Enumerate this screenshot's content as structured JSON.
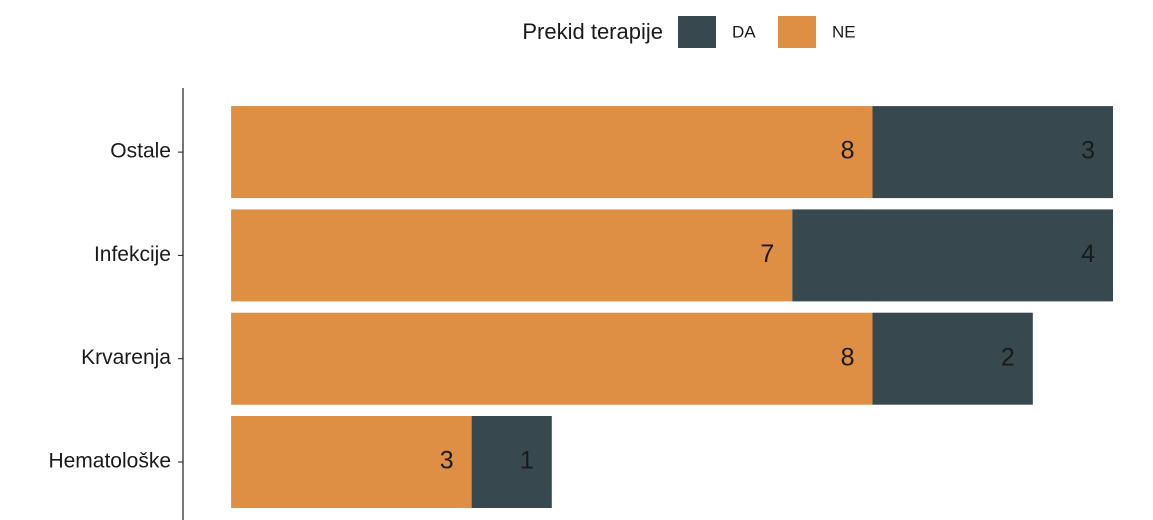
{
  "chart_data": {
    "type": "stacked_barh",
    "legend_title": "Prekid terapije",
    "legend_position": "top",
    "categories": [
      "Hematološke",
      "Krvarenja",
      "Infekcije",
      "Ostale"
    ],
    "series": [
      {
        "name": "DA",
        "color": "#37494f",
        "values": [
          1,
          2,
          4,
          3
        ]
      },
      {
        "name": "NE",
        "color": "#de8f44",
        "values": [
          3,
          8,
          7,
          8
        ]
      }
    ],
    "xlim": [
      -0.6,
      11
    ]
  }
}
